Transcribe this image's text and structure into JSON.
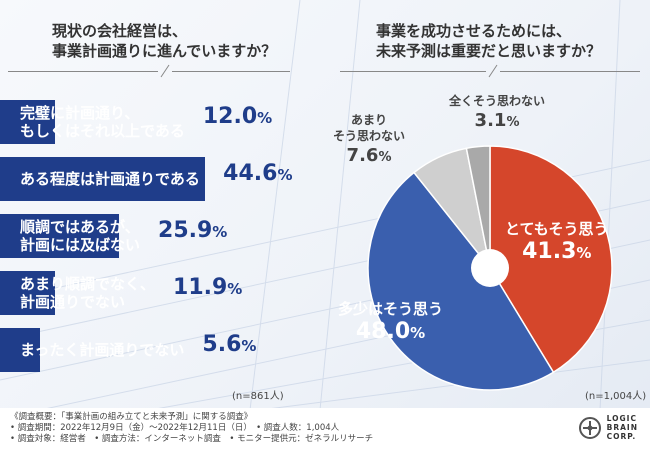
{
  "left_question": {
    "line1": "現状の会社経営は、",
    "line2": "事業計画通りに進んでいますか？"
  },
  "right_question": {
    "line1": "事業を成功させるためには、",
    "line2": "未来予測は重要だと思いますか？"
  },
  "colors": {
    "navy": "#1f3d8a",
    "pie_red": "#d5462b",
    "pie_blue": "#3a5fae",
    "pie_gray": "#cfcfcf",
    "pie_gray_dark": "#a9a9a9"
  },
  "chart_data": [
    {
      "type": "bar",
      "orientation": "horizontal",
      "title": "現状の会社経営は、事業計画通りに進んでいますか？",
      "categories": [
        "完璧に計画通り、もしくはそれ以上である",
        "ある程度は計画通りである",
        "順調ではあるが、計画には及ばない",
        "あまり順調でなく、計画通りでない",
        "まったく計画通りでない"
      ],
      "values": [
        12.0,
        44.6,
        25.9,
        11.9,
        5.6
      ],
      "unit": "%",
      "sample": "(n=861人)"
    },
    {
      "type": "pie",
      "title": "事業を成功させるためには、未来予測は重要だと思いますか？",
      "categories": [
        "とてもそう思う",
        "多少はそう思う",
        "あまりそう思わない",
        "全くそう思わない"
      ],
      "values": [
        41.3,
        48.0,
        7.6,
        3.1
      ],
      "unit": "%",
      "sample": "(n=1,004人)"
    }
  ],
  "bars": [
    {
      "line1": "完璧に計画通り、",
      "line2": "もしくはそれ以上である",
      "value": "12.0",
      "unit": "%"
    },
    {
      "line1": "ある程度は計画通りである",
      "line2": "",
      "value": "44.6",
      "unit": "%"
    },
    {
      "line1": "順調ではあるが、",
      "line2": "計画には及ばない",
      "value": "25.9",
      "unit": "%"
    },
    {
      "line1": "あまり順調でなく、",
      "line2": "計画通りでない",
      "value": "11.9",
      "unit": "%"
    },
    {
      "line1": "まったく計画通りでない",
      "line2": "",
      "value": "5.6",
      "unit": "%"
    }
  ],
  "left_n": "(n=861人)",
  "right_n": "(n=1,004人)",
  "pie": [
    {
      "line1": "とてもそう思う",
      "line2": "",
      "value": "41.3",
      "unit": "%"
    },
    {
      "line1": "多少はそう思う",
      "line2": "",
      "value": "48.0",
      "unit": "%"
    },
    {
      "line1": "あまり",
      "line2": "そう思わない",
      "value": "7.6",
      "unit": "%"
    },
    {
      "line1": "全くそう思わない",
      "line2": "",
      "value": "3.1",
      "unit": "%"
    }
  ],
  "footer": {
    "line1": "《調査概要：「事業計画の組み立てと未来予測」に関する調査》",
    "line2": "• 調査期間：2022年12月9日（金）〜2022年12月11日（日）　• 調査人数：1,004人",
    "line3": "• 調査対象：経営者　• 調査方法：インターネット調査　• モニター提供元：ゼネラルリサーチ"
  },
  "logo": {
    "word1": "LOGIC",
    "word2": "BRAIN",
    "word3": "CORP."
  }
}
